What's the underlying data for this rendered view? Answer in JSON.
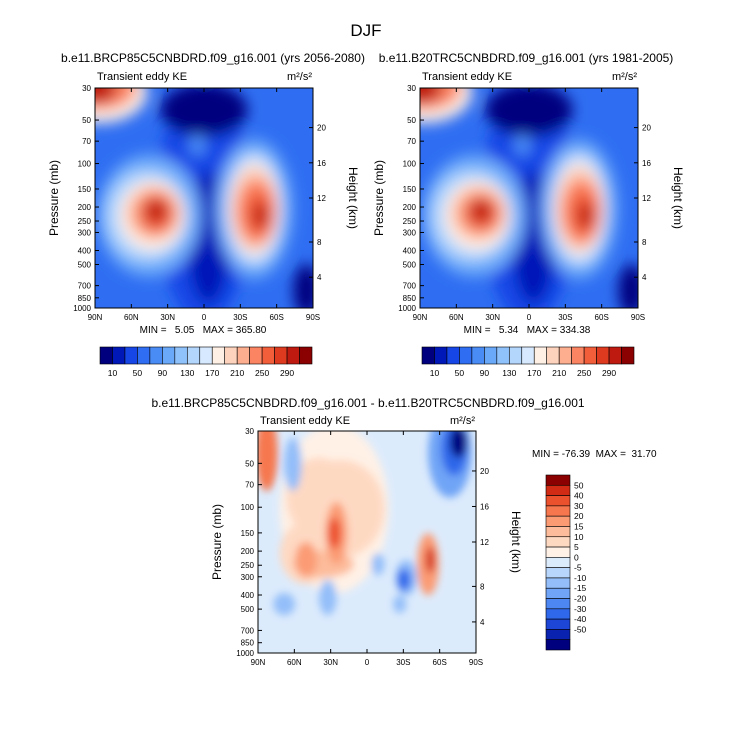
{
  "season": "DJF",
  "colors": {
    "abs": [
      "#00007f",
      "#0018b8",
      "#1746e6",
      "#2f6ef2",
      "#4a8cf6",
      "#6aa8f9",
      "#8fc1fb",
      "#b3d6fd",
      "#d6e9fe",
      "#fff0e5",
      "#fed3bd",
      "#fdae8e",
      "#fb8462",
      "#f25d3a",
      "#de3a1f",
      "#bf1a10",
      "#8b0000"
    ],
    "diff": [
      "#00007f",
      "#0a22b0",
      "#1d45d6",
      "#2f68ea",
      "#4d87f2",
      "#6fa4f6",
      "#93bef9",
      "#b8d6fb",
      "#dcebfc",
      "#fff1e6",
      "#fed9c2",
      "#fdbc9b",
      "#fb9b74",
      "#f6774e",
      "#ec512e",
      "#d12b15",
      "#8b0000"
    ]
  },
  "panels": [
    {
      "title": "b.e11.BRCP85C5CNBDRD.f09_g16.001 (yrs 2056-2080)",
      "subtitle_left": "Transient eddy KE",
      "units": "m²/s²",
      "ylabel": "Pressure (mb)",
      "ylabel_right": "Height (km)",
      "minmax": "MIN =   5.05   MAX = 365.80"
    },
    {
      "title": "b.e11.B20TRC5CNBDRD.f09_g16.001 (yrs 1981-2005)",
      "subtitle_left": "Transient eddy KE",
      "units": "m²/s²",
      "ylabel": "Pressure (mb)",
      "ylabel_right": "Height (km)",
      "minmax": "MIN =   5.34   MAX = 334.38"
    },
    {
      "title": "b.e11.BRCP85C5CNBDRD.f09_g16.001 - b.e11.B20TRC5CNBDRD.f09_g16.001",
      "subtitle_left": "Transient eddy KE",
      "units": "m²/s²",
      "ylabel": "Pressure (mb)",
      "ylabel_right": "Height (km)",
      "minmax": "MIN = -76.39  MAX =  31.70"
    }
  ],
  "chart_data": [
    {
      "type": "heatmap",
      "xticks": [
        "90N",
        "60N",
        "30N",
        "0",
        "30S",
        "60S",
        "90S"
      ],
      "yticks": [
        "30",
        "50",
        "70",
        "100",
        "150",
        "200",
        "250",
        "300",
        "400",
        "500",
        "700",
        "850",
        "1000"
      ],
      "yticks_right": [
        "20",
        "16",
        "12",
        "8",
        "4"
      ],
      "colorbar_labels": [
        "10",
        "50",
        "90",
        "130",
        "170",
        "210",
        "250",
        "290"
      ],
      "min": 5.05,
      "max": 365.8
    },
    {
      "type": "heatmap",
      "xticks": [
        "90N",
        "60N",
        "30N",
        "0",
        "30S",
        "60S",
        "90S"
      ],
      "yticks": [
        "30",
        "50",
        "70",
        "100",
        "150",
        "200",
        "250",
        "300",
        "400",
        "500",
        "700",
        "850",
        "1000"
      ],
      "yticks_right": [
        "20",
        "16",
        "12",
        "8",
        "4"
      ],
      "colorbar_labels": [
        "10",
        "50",
        "90",
        "130",
        "170",
        "210",
        "250",
        "290"
      ],
      "min": 5.34,
      "max": 334.38
    },
    {
      "type": "heatmap",
      "xticks": [
        "90N",
        "60N",
        "30N",
        "0",
        "30S",
        "60S",
        "90S"
      ],
      "yticks": [
        "30",
        "50",
        "70",
        "100",
        "150",
        "200",
        "250",
        "300",
        "400",
        "500",
        "700",
        "850",
        "1000"
      ],
      "yticks_right": [
        "20",
        "16",
        "12",
        "8",
        "4"
      ],
      "colorbar_labels": [
        "50",
        "40",
        "30",
        "20",
        "15",
        "10",
        "5",
        "0",
        "-5",
        "-10",
        "-15",
        "-20",
        "-30",
        "-40",
        "-50"
      ],
      "min": -76.39,
      "max": 31.7
    }
  ]
}
